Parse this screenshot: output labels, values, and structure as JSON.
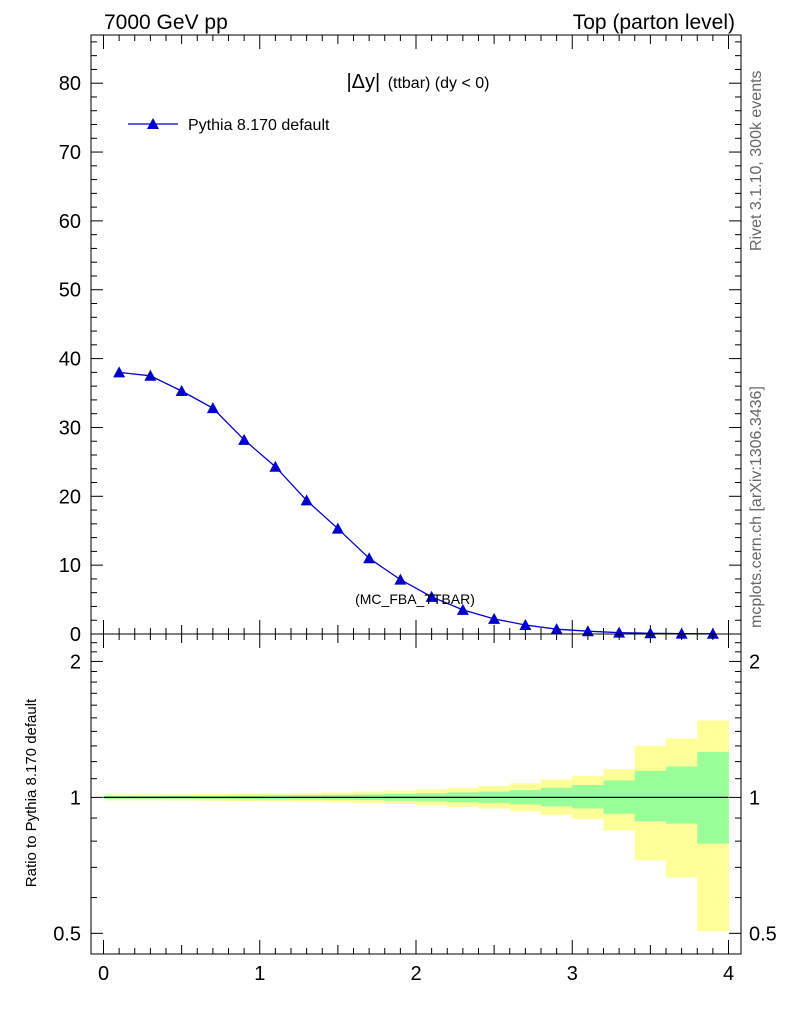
{
  "header": {
    "left": "7000 GeV pp",
    "right": "Top (parton level)"
  },
  "side_labels": {
    "rivet": "Rivet 3.1.10,  300k events",
    "mcplots": "mcplots.cern.ch [arXiv:1306.3436]"
  },
  "chart_data": [
    {
      "type": "line",
      "title_prefix": "|Δy|",
      "title_suffix": "(ttbar) (dy < 0)",
      "watermark": "(MC_FBA_TTBAR)",
      "ylim": [
        0,
        87
      ],
      "xlim": [
        -0.08,
        4.08
      ],
      "y_ticks": [
        "0",
        "10",
        "20",
        "30",
        "40",
        "50",
        "60",
        "70",
        "80"
      ],
      "series": [
        {
          "name": "Pythia 8.170 default",
          "color": "#0000cc",
          "marker": "triangle",
          "x": [
            0.1,
            0.3,
            0.5,
            0.7,
            0.9,
            1.1,
            1.3,
            1.5,
            1.7,
            1.9,
            2.1,
            2.3,
            2.5,
            2.7,
            2.9,
            3.1,
            3.3,
            3.5,
            3.7,
            3.9
          ],
          "y": [
            38.0,
            37.5,
            35.3,
            32.8,
            28.2,
            24.3,
            19.4,
            15.3,
            11.0,
            7.9,
            5.4,
            3.5,
            2.2,
            1.3,
            0.7,
            0.4,
            0.2,
            0.1,
            0.05,
            0.03
          ]
        }
      ]
    },
    {
      "type": "area",
      "ylabel": "Ratio to Pythia 8.170 default",
      "xlim": [
        -0.08,
        4.08
      ],
      "ylim": [
        0.45,
        2.3
      ],
      "log_y": true,
      "x_ticks": [
        "0",
        "1",
        "2",
        "3",
        "4"
      ],
      "y_ticks": [
        "0.5",
        "1",
        "2"
      ],
      "reference_line": 1,
      "bin_edges": [
        0,
        0.2,
        0.4,
        0.6,
        0.8,
        1.0,
        1.2,
        1.4,
        1.6,
        1.8,
        2.0,
        2.2,
        2.4,
        2.6,
        2.8,
        3.0,
        3.2,
        3.4,
        3.6,
        3.8,
        4.0
      ],
      "bands": [
        {
          "color": "#ffff99",
          "lower": [
            0.985,
            0.985,
            0.984,
            0.983,
            0.982,
            0.98,
            0.978,
            0.975,
            0.972,
            0.967,
            0.96,
            0.953,
            0.945,
            0.933,
            0.915,
            0.895,
            0.845,
            0.725,
            0.665,
            0.505
          ],
          "upper": [
            1.015,
            1.016,
            1.016,
            1.017,
            1.018,
            1.02,
            1.023,
            1.026,
            1.03,
            1.036,
            1.042,
            1.05,
            1.06,
            1.075,
            1.095,
            1.115,
            1.155,
            1.3,
            1.35,
            1.48
          ]
        },
        {
          "color": "#99ff99",
          "lower": [
            0.993,
            0.993,
            0.993,
            0.992,
            0.991,
            0.99,
            0.989,
            0.988,
            0.986,
            0.983,
            0.98,
            0.976,
            0.972,
            0.965,
            0.955,
            0.945,
            0.92,
            0.885,
            0.875,
            0.79
          ],
          "upper": [
            1.007,
            1.007,
            1.008,
            1.008,
            1.009,
            1.01,
            1.011,
            1.013,
            1.015,
            1.018,
            1.021,
            1.026,
            1.03,
            1.038,
            1.05,
            1.065,
            1.09,
            1.145,
            1.17,
            1.26
          ]
        }
      ]
    }
  ]
}
